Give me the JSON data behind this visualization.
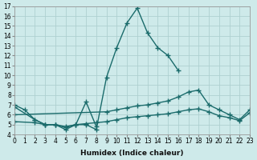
{
  "xlabel": "Humidex (Indice chaleur)",
  "x": [
    0,
    1,
    2,
    3,
    4,
    5,
    6,
    7,
    8,
    9,
    10,
    11,
    12,
    13,
    14,
    15,
    16,
    17,
    18,
    19,
    20,
    21,
    22,
    23
  ],
  "line1": [
    7.0,
    6.5,
    5.5,
    5.0,
    5.0,
    4.5,
    5.0,
    5.0,
    4.5,
    9.8,
    12.8,
    15.3,
    16.8,
    14.3,
    12.8,
    12.0,
    10.5,
    null,
    null,
    null,
    null,
    null,
    null,
    null
  ],
  "line2": [
    6.8,
    null,
    5.5,
    5.0,
    5.0,
    4.7,
    5.0,
    7.3,
    4.8,
    null,
    null,
    null,
    null,
    null,
    null,
    null,
    null,
    null,
    null,
    null,
    null,
    null,
    null,
    null
  ],
  "line3": [
    6.0,
    null,
    null,
    null,
    null,
    null,
    null,
    null,
    null,
    6.3,
    6.5,
    6.7,
    6.9,
    7.0,
    7.2,
    7.4,
    7.8,
    8.3,
    8.5,
    7.0,
    6.5,
    6.0,
    5.5,
    6.5
  ],
  "line4": [
    5.3,
    null,
    5.2,
    5.0,
    5.0,
    4.8,
    5.0,
    5.1,
    5.2,
    5.3,
    5.5,
    5.7,
    5.8,
    5.9,
    6.0,
    6.1,
    6.3,
    6.5,
    6.6,
    6.3,
    5.9,
    5.7,
    5.4,
    6.2
  ],
  "ylim": [
    4,
    17
  ],
  "xlim": [
    0,
    23
  ],
  "bg_color": "#ceeaea",
  "grid_color": "#aed0d0",
  "line_color": "#1a6b6b",
  "yticks": [
    4,
    5,
    6,
    7,
    8,
    9,
    10,
    11,
    12,
    13,
    14,
    15,
    16,
    17
  ],
  "xticks": [
    0,
    1,
    2,
    3,
    4,
    5,
    6,
    7,
    8,
    9,
    10,
    11,
    12,
    13,
    14,
    15,
    16,
    17,
    18,
    19,
    20,
    21,
    22,
    23
  ],
  "tick_fontsize": 5.5,
  "xlabel_fontsize": 6.5
}
